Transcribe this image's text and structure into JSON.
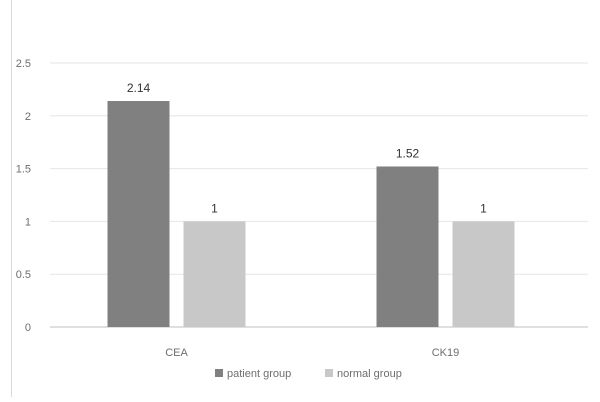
{
  "chart_data": {
    "type": "bar",
    "categories": [
      "CEA",
      "CK19"
    ],
    "series": [
      {
        "name": "patient group",
        "values": [
          2.14,
          1.52
        ],
        "labels": [
          "2.14",
          "1.52"
        ],
        "color": "#808080"
      },
      {
        "name": "normal group",
        "values": [
          1,
          1
        ],
        "labels": [
          "1",
          "1"
        ],
        "color": "#c8c8c8"
      }
    ],
    "ylim": [
      0,
      2.5
    ],
    "yticks": [
      "0",
      "0.5",
      "1",
      "1.5",
      "2",
      "2.5"
    ],
    "grid": true,
    "legend": "bottom",
    "title": "",
    "xlabel": "",
    "ylabel": ""
  }
}
